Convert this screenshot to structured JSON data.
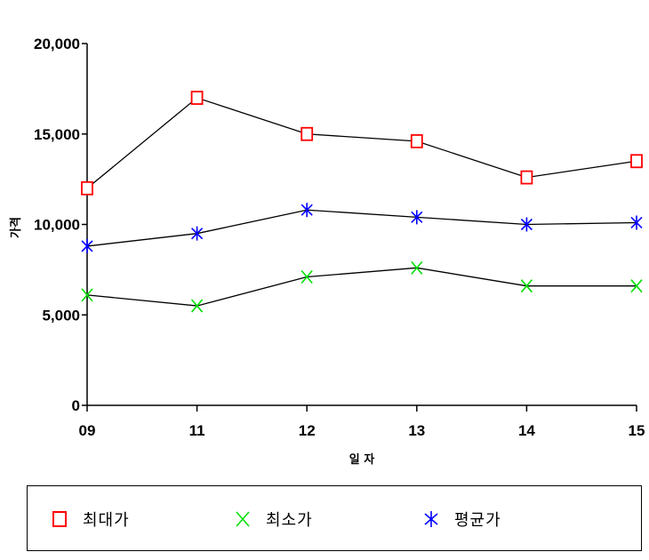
{
  "chart_data": {
    "type": "line",
    "title": "",
    "xlabel": "일 자",
    "ylabel": "가격",
    "categories": [
      "09",
      "11",
      "12",
      "13",
      "14",
      "15"
    ],
    "ylim": [
      0,
      20000
    ],
    "yticks": [
      0,
      5000,
      10000,
      15000,
      20000
    ],
    "ytick_labels": [
      "0",
      "5,000",
      "10,000",
      "15,000",
      "20,000"
    ],
    "grid": false,
    "legend_position": "bottom",
    "series": [
      {
        "name": "최대가",
        "marker": "square",
        "color": "#ff0000",
        "line_color": "#000000",
        "values": [
          12000,
          17000,
          15000,
          14600,
          12600,
          13500
        ]
      },
      {
        "name": "최소가",
        "marker": "x",
        "color": "#00e000",
        "line_color": "#000000",
        "values": [
          6100,
          5500,
          7100,
          7600,
          6600,
          6600
        ]
      },
      {
        "name": "평균가",
        "marker": "asterisk",
        "color": "#0000ff",
        "line_color": "#000000",
        "values": [
          8800,
          9500,
          10800,
          10400,
          10000,
          10100
        ]
      }
    ]
  }
}
